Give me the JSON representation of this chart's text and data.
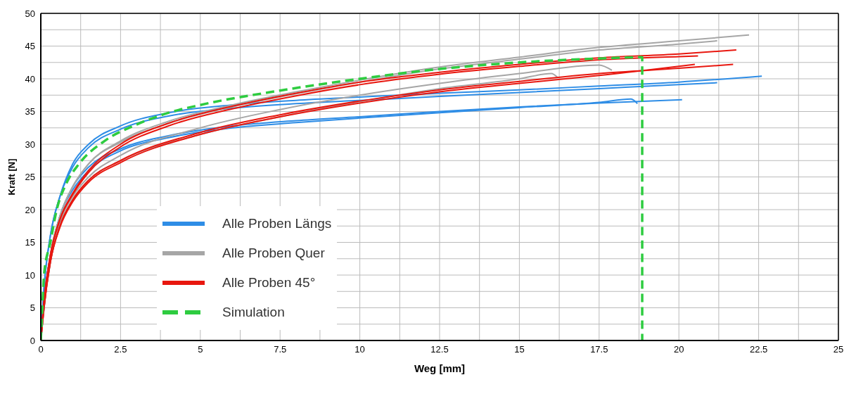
{
  "chart_data": {
    "type": "line",
    "xlabel": "Weg [mm]",
    "ylabel": "Kraft [N]",
    "xlim": [
      0,
      25
    ],
    "xticks": [
      0,
      {
        "value": 1.25,
        "label": null
      },
      2.5,
      {
        "value": 3.75,
        "label": null
      },
      5,
      {
        "value": 6.25,
        "label": null
      },
      7.5,
      {
        "value": 8.75,
        "label": null
      },
      10,
      {
        "value": 11.25,
        "label": null
      },
      12.5,
      {
        "value": 13.75,
        "label": null
      },
      15,
      {
        "value": 16.25,
        "label": null
      },
      17.5,
      {
        "value": 18.75,
        "label": null
      },
      20,
      {
        "value": 21.25,
        "label": null
      },
      22.5,
      {
        "value": 23.75,
        "label": null
      },
      25
    ],
    "ylim": [
      0,
      50
    ],
    "yticks": [
      0,
      {
        "value": 2.5,
        "label": null
      },
      5,
      {
        "value": 7.5,
        "label": null
      },
      10,
      {
        "value": 12.5,
        "label": null
      },
      15,
      {
        "value": 17.5,
        "label": null
      },
      20,
      {
        "value": 22.5,
        "label": null
      },
      25,
      {
        "value": 27.5,
        "label": null
      },
      30,
      {
        "value": 32.5,
        "label": null
      },
      35,
      {
        "value": 37.5,
        "label": null
      },
      40,
      {
        "value": 42.5,
        "label": null
      },
      45,
      {
        "value": 47.5,
        "label": null
      },
      50
    ],
    "grid": true,
    "legend": "bottom left",
    "marker": "none",
    "line_style": "solid",
    "series": [
      {
        "name": "Alle Proben Längs",
        "color": "#2e8de6",
        "x": [
          0,
          0.1,
          0.3,
          0.6,
          1,
          1.5,
          2.5,
          4,
          6,
          8,
          10,
          12.5,
          15,
          17.5,
          20,
          22.6
        ],
        "values": [
          0,
          8,
          16,
          22,
          27,
          30,
          32.8,
          34.8,
          36,
          36.7,
          37.2,
          37.8,
          38.3,
          38.9,
          39.5,
          40.4
        ]
      },
      {
        "color": "#2e8de6",
        "x": [
          0,
          0.1,
          0.3,
          0.6,
          1,
          1.5,
          2.5,
          4,
          6,
          8,
          10,
          12.5,
          15,
          17.5,
          20,
          21.2
        ],
        "values": [
          0,
          8,
          16,
          22,
          26.5,
          29.5,
          32.3,
          34.3,
          35.5,
          36.2,
          36.7,
          37.3,
          37.9,
          38.5,
          39.1,
          39.4
        ]
      },
      {
        "color": "#2e8de6",
        "x": [
          0,
          0.1,
          0.3,
          0.6,
          1,
          1.5,
          2.5,
          4,
          6,
          8,
          10,
          12.5,
          15,
          17.5,
          20.1
        ],
        "values": [
          0,
          6,
          13,
          19,
          23.5,
          26.5,
          29.3,
          31.3,
          32.8,
          33.6,
          34.2,
          35,
          35.7,
          36.3,
          36.8
        ]
      },
      {
        "color": "#2e8de6",
        "x": [
          0,
          0.1,
          0.3,
          0.6,
          1,
          1.5,
          2.5,
          4,
          6,
          8,
          10,
          12.5,
          15,
          17.5,
          18.5,
          18.7
        ],
        "values": [
          0,
          6,
          13,
          19,
          23,
          26,
          29,
          31,
          32.5,
          33.3,
          34,
          34.8,
          35.6,
          36.4,
          36.9,
          36.2
        ]
      },
      {
        "name": "Alle Proben Quer",
        "color": "#a6a6a6",
        "x": [
          0,
          0.3,
          0.6,
          1,
          1.5,
          2.5,
          4,
          6,
          8,
          10,
          12.5,
          15,
          17.5,
          20,
          22.2
        ],
        "values": [
          0,
          13,
          19,
          23.5,
          27,
          30.5,
          33.5,
          36,
          38,
          39.8,
          41.8,
          43.3,
          44.8,
          45.8,
          46.7
        ]
      },
      {
        "color": "#a6a6a6",
        "x": [
          0,
          0.3,
          0.6,
          1,
          1.5,
          2.5,
          4,
          6,
          8,
          10,
          12.5,
          15,
          17.5,
          20,
          21.2
        ],
        "values": [
          0,
          13,
          19,
          23.5,
          27,
          30.3,
          33.2,
          35.7,
          37.7,
          39.5,
          41.5,
          43,
          44.4,
          45.3,
          45.8
        ]
      },
      {
        "color": "#a6a6a6",
        "x": [
          0,
          0.1,
          0.3,
          0.6,
          1,
          1.5,
          2.5,
          5,
          7.5,
          10,
          12.5,
          15,
          16,
          16.2
        ],
        "values": [
          0,
          5,
          12,
          17.5,
          21.5,
          24.5,
          27.5,
          31.5,
          34.2,
          36.5,
          38.5,
          40,
          40.8,
          40.2
        ]
      },
      {
        "color": "#a6a6a6",
        "x": [
          0,
          0.1,
          0.3,
          0.6,
          1,
          1.5,
          2.5,
          5,
          7.5,
          10,
          12.5,
          15,
          17.5,
          17.9
        ],
        "values": [
          0,
          5,
          12,
          18,
          22,
          25,
          28.3,
          32.5,
          35.3,
          37.5,
          39.3,
          40.8,
          42.1,
          41.3
        ]
      },
      {
        "name": "Alle Proben 45°",
        "color": "#e8170f",
        "x": [
          0,
          0.1,
          0.3,
          0.6,
          1,
          1.5,
          2.5,
          4,
          6,
          8,
          10,
          12.5,
          15,
          17.5,
          20,
          21.8
        ],
        "values": [
          0,
          6,
          13,
          18.5,
          22.5,
          26,
          30,
          33.2,
          35.8,
          37.8,
          39.5,
          41,
          42.2,
          43.2,
          43.8,
          44.4
        ]
      },
      {
        "color": "#e8170f",
        "x": [
          0,
          0.1,
          0.3,
          0.6,
          1,
          1.5,
          2.5,
          4,
          6,
          8,
          10,
          12.5,
          15,
          17.5,
          20,
          20.6
        ],
        "values": [
          0,
          6,
          13,
          18.5,
          22.3,
          25.7,
          29.6,
          32.8,
          35.4,
          37.4,
          39.1,
          40.7,
          41.9,
          42.9,
          43.4,
          43.5
        ]
      },
      {
        "color": "#e8170f",
        "x": [
          0,
          0.1,
          0.3,
          0.6,
          1,
          1.5,
          2.5,
          5,
          7.5,
          10,
          12.5,
          15,
          17.5,
          20,
          21.7
        ],
        "values": [
          0,
          5,
          12,
          17.5,
          21.5,
          24.5,
          27.5,
          31.8,
          34.5,
          36.6,
          38.3,
          39.6,
          40.8,
          41.6,
          42.2
        ]
      },
      {
        "color": "#e8170f",
        "x": [
          0,
          0.1,
          0.3,
          0.6,
          1,
          1.5,
          2.5,
          5,
          7.5,
          10,
          12.5,
          15,
          17.5,
          20.5
        ],
        "values": [
          0,
          5,
          12,
          17.3,
          21.2,
          24.2,
          27.2,
          31.5,
          34.2,
          36.3,
          38,
          39.3,
          40.5,
          42.2
        ]
      },
      {
        "name": "Simulation",
        "color": "#2ecc40",
        "line_style": "dashed",
        "x": [
          0,
          0.05,
          0.1,
          0.3,
          0.5,
          0.8,
          1.2,
          2,
          3,
          4,
          5,
          7.5,
          10,
          12.5,
          15,
          17.5,
          18.85,
          18.85
        ],
        "values": [
          0,
          5,
          10,
          15,
          20,
          24,
          27,
          30.5,
          33,
          34.8,
          36,
          38.2,
          40,
          41.5,
          42.5,
          43.1,
          43.3,
          0
        ]
      }
    ]
  }
}
